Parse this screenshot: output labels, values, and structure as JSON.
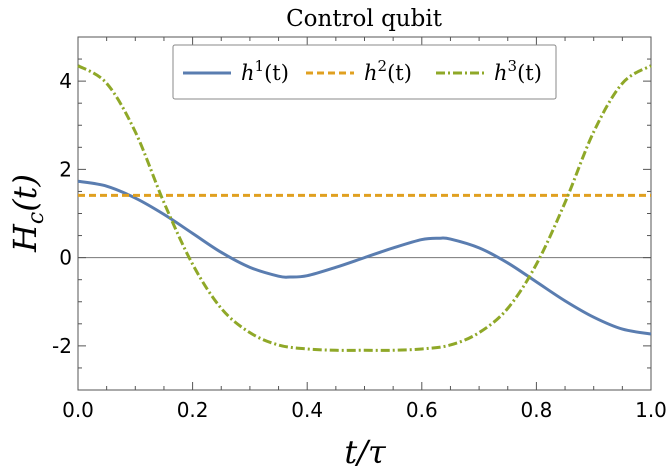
{
  "chart_data": {
    "type": "line",
    "title": "Control qubit",
    "xlabel": "t/τ",
    "ylabel": "H_c(t)",
    "xlim": [
      0.0,
      1.0
    ],
    "ylim": [
      -3.0,
      5.0
    ],
    "xticks": [
      "0.0",
      "0.2",
      "0.4",
      "0.6",
      "0.8",
      "1.0"
    ],
    "xtick_values": [
      0.0,
      0.2,
      0.4,
      0.6,
      0.8,
      1.0
    ],
    "yticks": [
      "-2",
      "0",
      "2",
      "4"
    ],
    "ytick_values": [
      -2,
      0,
      2,
      4
    ],
    "grid": false,
    "zero_line": true,
    "legend": {
      "placement": "top-center"
    },
    "series": [
      {
        "name": "h1(t)",
        "label_base": "h",
        "label_sup": "1",
        "label_arg": "(t)",
        "color": "#5a7db0",
        "style": "solid",
        "x": [
          0.0,
          0.05,
          0.1,
          0.15,
          0.2,
          0.25,
          0.3,
          0.35,
          0.37,
          0.4,
          0.45,
          0.5,
          0.55,
          0.6,
          0.63,
          0.65,
          0.7,
          0.75,
          0.8,
          0.85,
          0.9,
          0.95,
          1.0
        ],
        "y": [
          1.73,
          1.62,
          1.35,
          0.98,
          0.55,
          0.12,
          -0.22,
          -0.42,
          -0.44,
          -0.41,
          -0.22,
          0.0,
          0.22,
          0.41,
          0.44,
          0.42,
          0.22,
          -0.12,
          -0.55,
          -0.98,
          -1.35,
          -1.62,
          -1.73
        ]
      },
      {
        "name": "h2(t)",
        "label_base": "h",
        "label_sup": "2",
        "label_arg": "(t)",
        "color": "#e0a020",
        "style": "dashed",
        "x": [
          0.0,
          1.0
        ],
        "y": [
          1.41,
          1.41
        ]
      },
      {
        "name": "h3(t)",
        "label_base": "h",
        "label_sup": "3",
        "label_arg": "(t)",
        "color": "#8fa828",
        "style": "dashdot",
        "x": [
          0.0,
          0.05,
          0.1,
          0.15,
          0.2,
          0.25,
          0.3,
          0.35,
          0.4,
          0.45,
          0.5,
          0.55,
          0.6,
          0.65,
          0.7,
          0.75,
          0.8,
          0.85,
          0.9,
          0.95,
          1.0
        ],
        "y": [
          4.35,
          3.95,
          2.85,
          1.25,
          -0.15,
          -1.15,
          -1.7,
          -1.98,
          -2.07,
          -2.1,
          -2.1,
          -2.1,
          -2.07,
          -1.98,
          -1.7,
          -1.15,
          -0.15,
          1.25,
          2.85,
          3.95,
          4.35
        ]
      }
    ]
  }
}
